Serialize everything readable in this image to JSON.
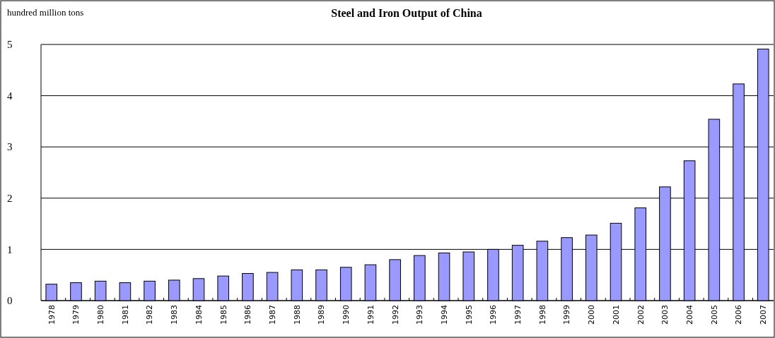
{
  "chart_data": {
    "type": "bar",
    "title": "Steel and Iron Output of China",
    "ylabel": "hundred million tons",
    "categories": [
      "1978",
      "1979",
      "1980",
      "1981",
      "1982",
      "1983",
      "1984",
      "1985",
      "1986",
      "1987",
      "1988",
      "1989",
      "1990",
      "1991",
      "1992",
      "1993",
      "1994",
      "1995",
      "1996",
      "1997",
      "1998",
      "1999",
      "2000",
      "2001",
      "2002",
      "2003",
      "2004",
      "2005",
      "2006",
      "2007"
    ],
    "values": [
      0.32,
      0.35,
      0.38,
      0.35,
      0.38,
      0.4,
      0.43,
      0.48,
      0.53,
      0.55,
      0.6,
      0.6,
      0.65,
      0.7,
      0.8,
      0.88,
      0.93,
      0.95,
      1.0,
      1.08,
      1.16,
      1.23,
      1.28,
      1.51,
      1.81,
      2.22,
      2.73,
      3.54,
      4.23,
      4.91
    ],
    "color": "#9999ff",
    "ylim": [
      0,
      5
    ],
    "yticks": [
      0,
      1,
      2,
      3,
      4,
      5
    ],
    "grid": "y"
  }
}
